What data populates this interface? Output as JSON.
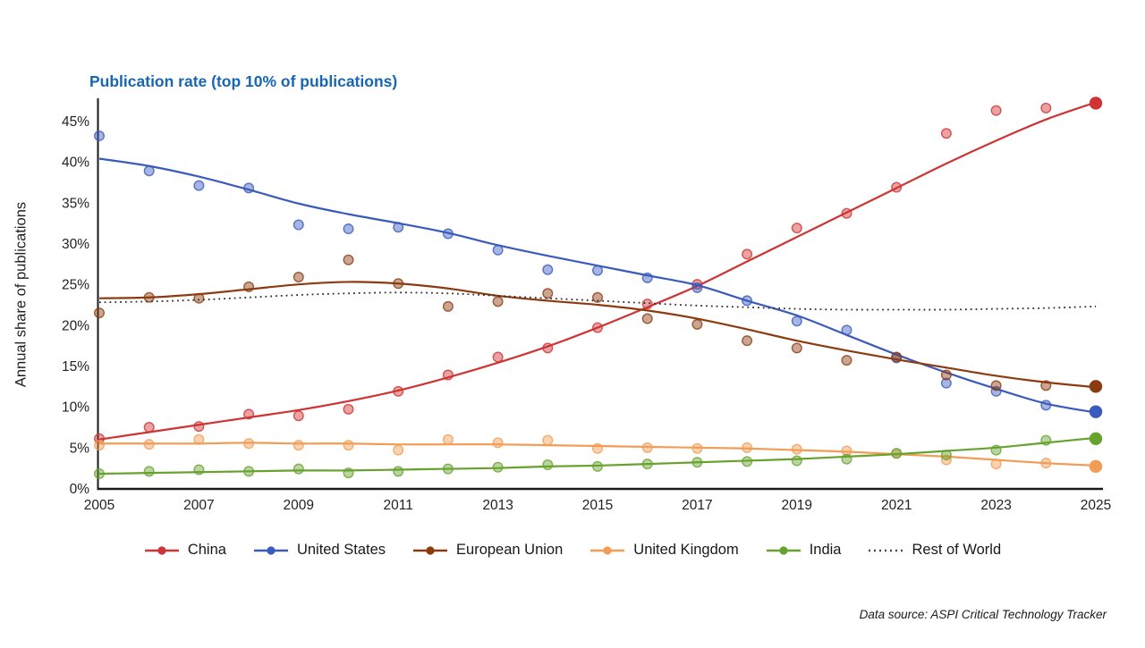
{
  "title": "Publication rate (top 10% of publications)",
  "title_color": "#1766b4",
  "y_axis_label": "Annual share of publications",
  "source_note": "Data source: ASPI Critical Technology Tracker",
  "chart_data": {
    "type": "line",
    "title": "Publication rate (top 10% of publications)",
    "xlabel": "",
    "ylabel": "Annual share of publications",
    "ylim": [
      0,
      48
    ],
    "grid": false,
    "legend_position": "bottom",
    "years": [
      2005,
      2006,
      2007,
      2008,
      2009,
      2010,
      2011,
      2012,
      2013,
      2014,
      2015,
      2016,
      2017,
      2018,
      2019,
      2020,
      2021,
      2022,
      2023,
      2024,
      2025
    ],
    "x_ticks": [
      {
        "value": 2005,
        "label": "2005"
      },
      {
        "value": 2007,
        "label": "2007"
      },
      {
        "value": 2009,
        "label": "2009"
      },
      {
        "value": 2011,
        "label": "2011"
      },
      {
        "value": 2013,
        "label": "2013"
      },
      {
        "value": 2015,
        "label": "2015"
      },
      {
        "value": 2017,
        "label": "2017"
      },
      {
        "value": 2019,
        "label": "2019"
      },
      {
        "value": 2021,
        "label": "2021"
      },
      {
        "value": 2023,
        "label": "2023"
      },
      {
        "value": 2025,
        "label": "2025"
      }
    ],
    "y_ticks": [
      {
        "value": 0,
        "label": "0%"
      },
      {
        "value": 5,
        "label": "5%"
      },
      {
        "value": 10,
        "label": "10%"
      },
      {
        "value": 15,
        "label": "15%"
      },
      {
        "value": 20,
        "label": "20%"
      },
      {
        "value": 25,
        "label": "25%"
      },
      {
        "value": 30,
        "label": "30%"
      },
      {
        "value": 35,
        "label": "35%"
      },
      {
        "value": 40,
        "label": "40%"
      },
      {
        "value": 45,
        "label": "45%"
      }
    ],
    "series": [
      {
        "name": "China",
        "color": "#cf3333",
        "style": "solid",
        "dots": [
          6.1,
          7.5,
          7.6,
          9.1,
          8.9,
          9.7,
          11.9,
          13.9,
          16.1,
          17.2,
          19.7,
          22.6,
          25.0,
          28.7,
          31.9,
          33.7,
          36.9,
          43.5,
          46.3,
          46.6,
          47.2
        ],
        "trend": [
          6.0,
          6.9,
          7.8,
          8.7,
          9.6,
          10.7,
          12.0,
          13.6,
          15.4,
          17.4,
          19.7,
          22.2,
          24.8,
          27.8,
          30.8,
          33.8,
          36.8,
          39.8,
          42.6,
          45.2,
          47.3
        ]
      },
      {
        "name": "United States",
        "color": "#3a5abc",
        "style": "solid",
        "dots": [
          43.2,
          38.9,
          37.1,
          36.8,
          32.3,
          31.8,
          32.0,
          31.2,
          29.2,
          26.8,
          26.7,
          25.8,
          24.6,
          23.0,
          20.5,
          19.4,
          16.0,
          12.9,
          11.9,
          10.2,
          9.4
        ],
        "trend": [
          40.4,
          39.5,
          38.2,
          36.6,
          34.9,
          33.6,
          32.5,
          31.3,
          29.8,
          28.5,
          27.3,
          26.1,
          24.9,
          23.0,
          21.2,
          18.8,
          16.4,
          14.2,
          12.2,
          10.4,
          9.3
        ]
      },
      {
        "name": "European Union",
        "color": "#8c3b10",
        "style": "solid",
        "dots": [
          21.5,
          23.4,
          23.3,
          24.7,
          25.9,
          28.0,
          25.1,
          22.3,
          22.9,
          23.9,
          23.4,
          20.8,
          20.1,
          18.1,
          17.2,
          15.7,
          16.1,
          13.9,
          12.6,
          12.6,
          12.5
        ],
        "trend": [
          23.3,
          23.4,
          23.8,
          24.4,
          25.0,
          25.3,
          25.1,
          24.5,
          23.6,
          23.0,
          22.5,
          21.8,
          20.8,
          19.5,
          18.1,
          16.9,
          15.8,
          14.8,
          13.8,
          13.0,
          12.4
        ]
      },
      {
        "name": "United Kingdom",
        "color": "#f29c55",
        "style": "solid",
        "dots": [
          5.3,
          5.4,
          6.0,
          5.5,
          5.3,
          5.3,
          4.7,
          6.0,
          5.6,
          5.9,
          4.9,
          5.0,
          4.9,
          5.0,
          4.8,
          4.6,
          4.3,
          3.5,
          3.0,
          3.1,
          2.7
        ],
        "trend": [
          5.5,
          5.5,
          5.5,
          5.6,
          5.5,
          5.5,
          5.4,
          5.4,
          5.4,
          5.3,
          5.2,
          5.1,
          5.0,
          4.9,
          4.7,
          4.5,
          4.2,
          3.9,
          3.5,
          3.1,
          2.8
        ]
      },
      {
        "name": "India",
        "color": "#67a22e",
        "style": "solid",
        "dots": [
          1.8,
          2.1,
          2.3,
          2.1,
          2.4,
          1.9,
          2.1,
          2.4,
          2.6,
          2.9,
          2.7,
          3.0,
          3.2,
          3.3,
          3.4,
          3.6,
          4.3,
          4.1,
          4.7,
          5.9,
          6.1
        ],
        "trend": [
          1.8,
          1.9,
          2.0,
          2.1,
          2.2,
          2.2,
          2.3,
          2.4,
          2.5,
          2.7,
          2.8,
          3.0,
          3.2,
          3.4,
          3.6,
          3.9,
          4.2,
          4.6,
          5.0,
          5.6,
          6.2
        ]
      },
      {
        "name": "Rest of World",
        "color": "#3a3a3a",
        "style": "dotted",
        "dots": null,
        "trend": [
          22.8,
          22.9,
          23.1,
          23.4,
          23.7,
          23.9,
          24.0,
          23.9,
          23.6,
          23.3,
          23.0,
          22.7,
          22.4,
          22.2,
          22.0,
          21.9,
          21.9,
          21.9,
          22.0,
          22.1,
          22.3
        ]
      }
    ]
  }
}
